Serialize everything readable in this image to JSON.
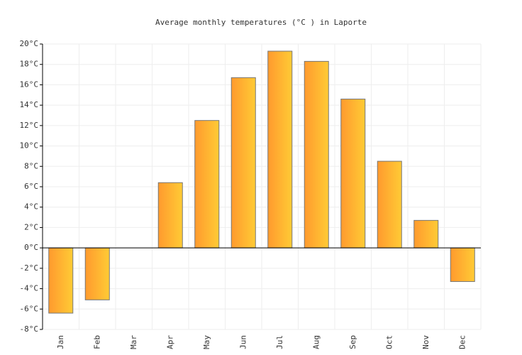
{
  "chart_data": {
    "type": "bar",
    "title": "Average monthly temperatures (°C ) in Laporte",
    "categories": [
      "Jan",
      "Feb",
      "Mar",
      "Apr",
      "May",
      "Jun",
      "Jul",
      "Aug",
      "Sep",
      "Oct",
      "Nov",
      "Dec"
    ],
    "values": [
      -6.4,
      -5.1,
      0,
      6.4,
      12.5,
      16.7,
      19.3,
      18.3,
      14.6,
      8.5,
      2.7,
      -3.3
    ],
    "gradient_colors": [
      "#ff9a2e",
      "#ffcb35"
    ],
    "ylim": [
      -8,
      20
    ],
    "yticks": [
      {
        "value": -8,
        "label": "-8°C"
      },
      {
        "value": -6,
        "label": "-6°C"
      },
      {
        "value": -4,
        "label": "-4°C"
      },
      {
        "value": -2,
        "label": "-2°C"
      },
      {
        "value": 0,
        "label": "0°C"
      },
      {
        "value": 2,
        "label": "2°C"
      },
      {
        "value": 4,
        "label": "4°C"
      },
      {
        "value": 6,
        "label": "6°C"
      },
      {
        "value": 8,
        "label": "8°C"
      },
      {
        "value": 10,
        "label": "10°C"
      },
      {
        "value": 12,
        "label": "12°C"
      },
      {
        "value": 14,
        "label": "14°C"
      },
      {
        "value": 16,
        "label": "16°C"
      },
      {
        "value": 18,
        "label": "18°C"
      },
      {
        "value": 20,
        "label": "20°C"
      }
    ],
    "grid": true
  }
}
